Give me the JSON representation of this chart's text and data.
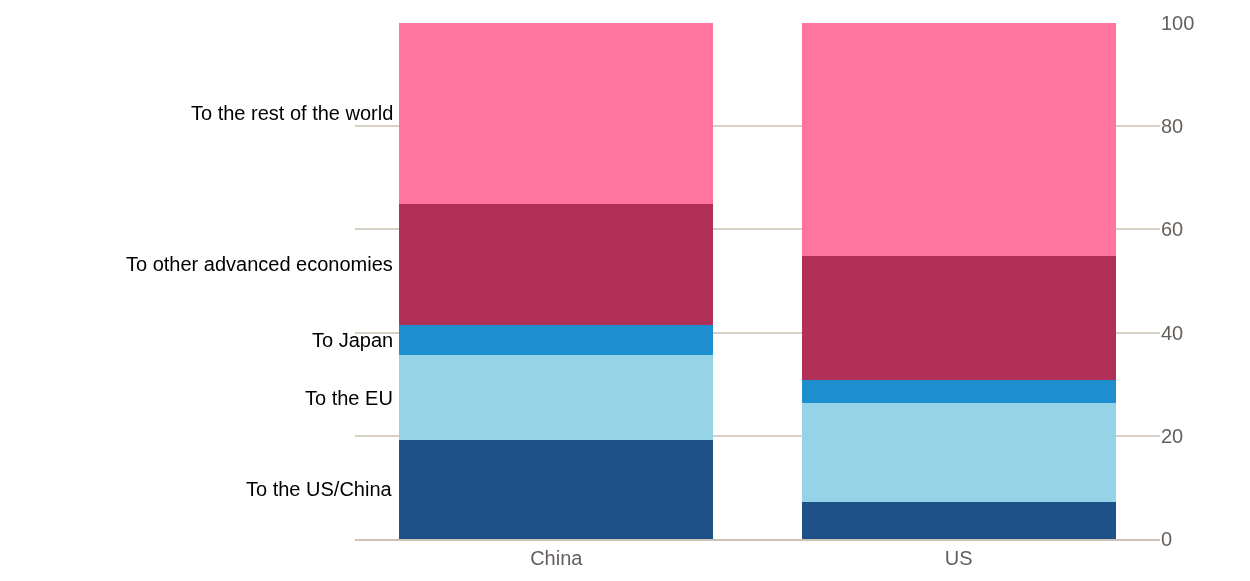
{
  "chart_data": {
    "type": "bar",
    "stacked": true,
    "categories": [
      "China",
      "US"
    ],
    "series": [
      {
        "name": "To the US/China",
        "color": "#1f5189",
        "values": [
          19.2,
          7.1
        ]
      },
      {
        "name": "To the EU",
        "color": "#96d3e6",
        "values": [
          16.4,
          19.2
        ]
      },
      {
        "name": "To Japan",
        "color": "#1e8fce",
        "values": [
          5.9,
          4.5
        ]
      },
      {
        "name": "To other advanced economies",
        "color": "#b03058",
        "values": [
          23.5,
          24.0
        ]
      },
      {
        "name": "To the rest of the world",
        "color": "#ff75a0",
        "values": [
          35.0,
          45.2
        ]
      }
    ],
    "ylim": [
      0,
      100
    ],
    "yticks": [
      0,
      20,
      40,
      60,
      80,
      100
    ],
    "grid": "y",
    "legend": false
  }
}
